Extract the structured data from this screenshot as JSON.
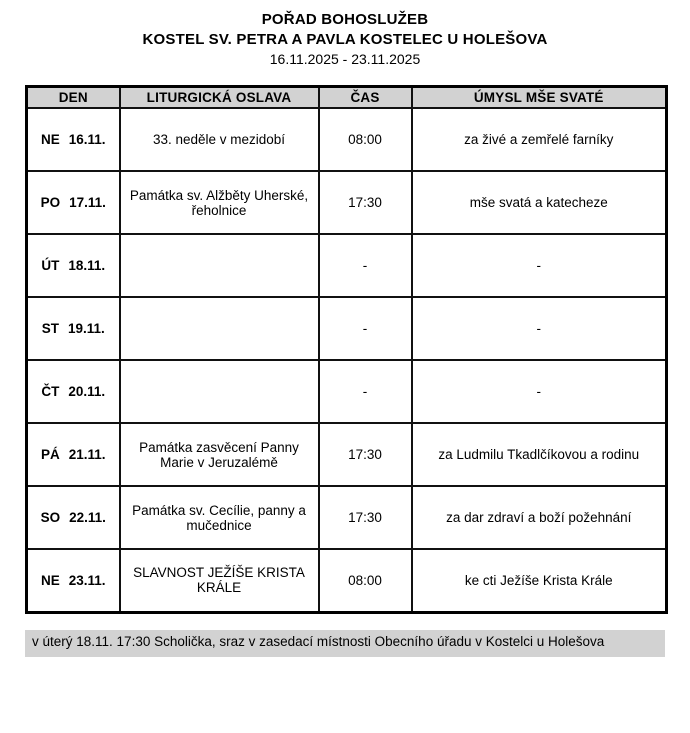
{
  "header": {
    "title": "POŘAD BOHOSLUŽEB",
    "subtitle": "KOSTEL SV. PETRA A PAVLA KOSTELEC U HOLEŠOVA",
    "date_range": "16.11.2025 - 23.11.2025"
  },
  "table": {
    "columns": {
      "den": "DEN",
      "liturgicka_oslava": "LITURGICKÁ OSLAVA",
      "cas": "ČAS",
      "umysl": "ÚMYSL MŠE SVATÉ"
    },
    "rows": [
      {
        "day": "NE",
        "date": "16.11.",
        "celebration": "33. neděle v mezidobí",
        "time": "08:00",
        "intention": "za živé a zemřelé farníky"
      },
      {
        "day": "PO",
        "date": "17.11.",
        "celebration": "Památka sv. Alžběty Uherské, řeholnice",
        "time": "17:30",
        "intention": "mše svatá a katecheze"
      },
      {
        "day": "ÚT",
        "date": "18.11.",
        "celebration": "",
        "time": "-",
        "intention": "-"
      },
      {
        "day": "ST",
        "date": "19.11.",
        "celebration": "",
        "time": "-",
        "intention": "-"
      },
      {
        "day": "ČT",
        "date": "20.11.",
        "celebration": "",
        "time": "-",
        "intention": "-"
      },
      {
        "day": "PÁ",
        "date": "21.11.",
        "celebration": "Památka zasvěcení Panny Marie v Jeruzalémě",
        "time": "17:30",
        "intention": "za Ludmilu Tkadlčíkovou a rodinu"
      },
      {
        "day": "SO",
        "date": "22.11.",
        "celebration": "Památka sv. Cecílie, panny a mučednice",
        "time": "17:30",
        "intention": "za dar zdraví a boží požehnání"
      },
      {
        "day": "NE",
        "date": "23.11.",
        "celebration": "SLAVNOST JEŽÍŠE KRISTA KRÁLE",
        "time": "08:00",
        "intention": "ke cti Ježíše Krista Krále"
      }
    ]
  },
  "footer": {
    "note": "v úterý 18.11. 17:30 Scholička, sraz v zasedací místnosti Obecního úřadu v Kostelci u Holešova"
  },
  "colors": {
    "cell_gray": "#d2d2d2",
    "border_black": "#000000",
    "text": "#000000",
    "page_background": "#ffffff"
  }
}
